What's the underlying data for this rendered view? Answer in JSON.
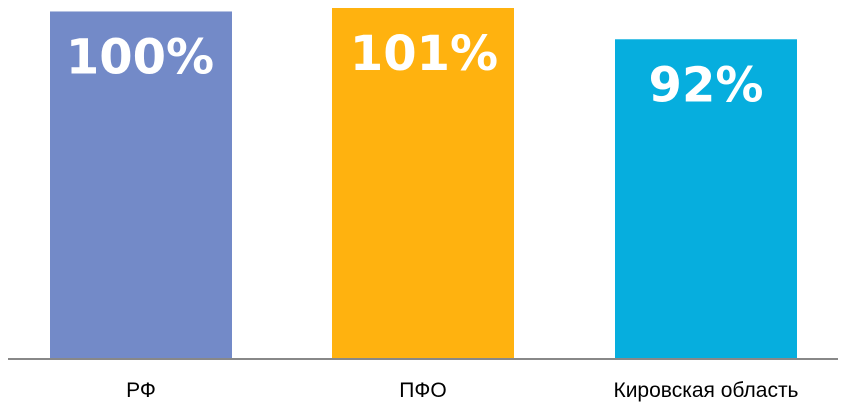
{
  "chart_data": {
    "type": "bar",
    "categories": [
      "РФ",
      "ПФО",
      "Кировская область"
    ],
    "values": [
      100,
      101,
      92
    ],
    "data_labels": [
      "100%",
      "101%",
      "92%"
    ],
    "colors": [
      "#738ac8",
      "#ffb20f",
      "#06aede"
    ],
    "axis_color": "#888888",
    "title": "",
    "xlabel": "",
    "ylabel": "",
    "grid": false,
    "legend": "none"
  }
}
